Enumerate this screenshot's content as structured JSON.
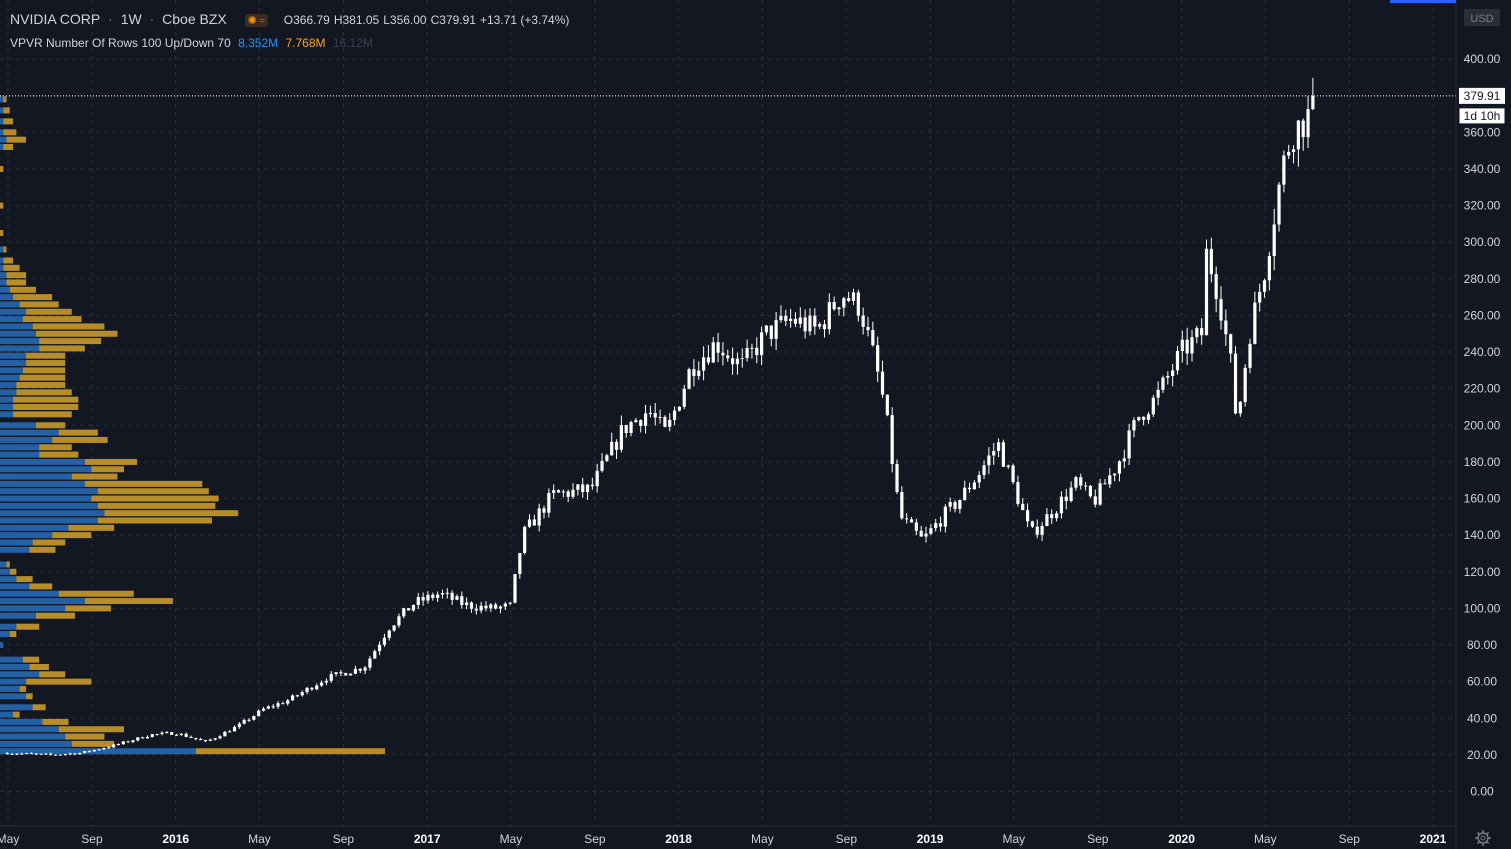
{
  "header": {
    "symbol": "NVIDIA CORP",
    "interval": "1W",
    "exchange": "Cboe BZX",
    "open": "O366.79",
    "high": "H381.05",
    "low": "L356.00",
    "close": "C379.91",
    "change": "+13.71 (+3.74%)"
  },
  "indicator": {
    "label": "VPVR Number Of Rows 100 Up/Down 70",
    "up_volume": "8.352M",
    "down_volume": "7.768M",
    "total_volume": "16.12M"
  },
  "price_axis": {
    "currency": "USD",
    "last_price": "379.91",
    "countdown": "1d 10h"
  },
  "colors": {
    "background": "#131722",
    "candle": "#ffffff",
    "vp_up": "#2668b3",
    "vp_down": "#c99a2a",
    "text": "#d1d4dc",
    "up_label": "#2196f3",
    "down_label": "#f5a623"
  },
  "chart_data": {
    "type": "candlestick",
    "title": "NVIDIA CORP · 1W · Cboe BZX",
    "y_ticks": [
      0,
      20,
      40,
      60,
      80,
      100,
      120,
      140,
      160,
      180,
      200,
      220,
      240,
      260,
      280,
      300,
      320,
      340,
      360,
      380,
      400
    ],
    "y_tick_labels": [
      "0.00",
      "20.00",
      "40.00",
      "60.00",
      "80.00",
      "100.00",
      "120.00",
      "140.00",
      "160.00",
      "180.00",
      "200.00",
      "220.00",
      "240.00",
      "260.00",
      "280.00",
      "300.00",
      "320.00",
      "340.00",
      "360.00",
      "",
      "400.00"
    ],
    "x_ticks": [
      {
        "label": "May",
        "t": 2015.333,
        "bold": false
      },
      {
        "label": "Sep",
        "t": 2015.667,
        "bold": false
      },
      {
        "label": "2016",
        "t": 2016.0,
        "bold": true
      },
      {
        "label": "May",
        "t": 2016.333,
        "bold": false
      },
      {
        "label": "Sep",
        "t": 2016.667,
        "bold": false
      },
      {
        "label": "2017",
        "t": 2017.0,
        "bold": true
      },
      {
        "label": "May",
        "t": 2017.333,
        "bold": false
      },
      {
        "label": "Sep",
        "t": 2017.667,
        "bold": false
      },
      {
        "label": "2018",
        "t": 2018.0,
        "bold": true
      },
      {
        "label": "May",
        "t": 2018.333,
        "bold": false
      },
      {
        "label": "Sep",
        "t": 2018.667,
        "bold": false
      },
      {
        "label": "2019",
        "t": 2019.0,
        "bold": true
      },
      {
        "label": "May",
        "t": 2019.333,
        "bold": false
      },
      {
        "label": "Sep",
        "t": 2019.667,
        "bold": false
      },
      {
        "label": "2020",
        "t": 2020.0,
        "bold": true
      },
      {
        "label": "May",
        "t": 2020.333,
        "bold": false
      },
      {
        "label": "Sep",
        "t": 2020.667,
        "bold": false
      },
      {
        "label": "2021",
        "t": 2021.0,
        "bold": true
      }
    ],
    "last_close": 379.91,
    "price_anchors": [
      [
        2015.33,
        21
      ],
      [
        2015.5,
        20
      ],
      [
        2015.62,
        21
      ],
      [
        2015.75,
        25
      ],
      [
        2015.9,
        31
      ],
      [
        2016.0,
        32
      ],
      [
        2016.12,
        27
      ],
      [
        2016.25,
        36
      ],
      [
        2016.35,
        45
      ],
      [
        2016.45,
        50
      ],
      [
        2016.6,
        62
      ],
      [
        2016.75,
        68
      ],
      [
        2016.85,
        90
      ],
      [
        2016.95,
        103
      ],
      [
        2017.05,
        108
      ],
      [
        2017.15,
        102
      ],
      [
        2017.25,
        100
      ],
      [
        2017.33,
        101
      ],
      [
        2017.38,
        140
      ],
      [
        2017.5,
        162
      ],
      [
        2017.65,
        165
      ],
      [
        2017.78,
        198
      ],
      [
        2017.88,
        208
      ],
      [
        2017.95,
        195
      ],
      [
        2018.05,
        232
      ],
      [
        2018.15,
        245
      ],
      [
        2018.25,
        232
      ],
      [
        2018.35,
        250
      ],
      [
        2018.45,
        258
      ],
      [
        2018.55,
        252
      ],
      [
        2018.65,
        272
      ],
      [
        2018.72,
        265
      ],
      [
        2018.78,
        235
      ],
      [
        2018.82,
        210
      ],
      [
        2018.88,
        150
      ],
      [
        2018.97,
        137
      ],
      [
        2019.05,
        150
      ],
      [
        2019.12,
        160
      ],
      [
        2019.2,
        175
      ],
      [
        2019.27,
        190
      ],
      [
        2019.35,
        160
      ],
      [
        2019.4,
        140
      ],
      [
        2019.5,
        155
      ],
      [
        2019.58,
        168
      ],
      [
        2019.65,
        158
      ],
      [
        2019.75,
        180
      ],
      [
        2019.83,
        205
      ],
      [
        2019.9,
        215
      ],
      [
        2020.0,
        240
      ],
      [
        2020.08,
        250
      ],
      [
        2020.1,
        295
      ],
      [
        2020.15,
        270
      ],
      [
        2020.2,
        230
      ],
      [
        2020.22,
        200
      ],
      [
        2020.27,
        250
      ],
      [
        2020.33,
        285
      ],
      [
        2020.4,
        340
      ],
      [
        2020.44,
        360
      ],
      [
        2020.5,
        368
      ],
      [
        2020.54,
        379.91
      ]
    ],
    "volume_profile": {
      "bins": [
        {
          "price": 22,
          "up": 0.6,
          "down": 0.58
        },
        {
          "price": 26,
          "up": 0.22,
          "down": 0.13
        },
        {
          "price": 30,
          "up": 0.2,
          "down": 0.12
        },
        {
          "price": 34,
          "up": 0.18,
          "down": 0.2
        },
        {
          "price": 38,
          "up": 0.13,
          "down": 0.08
        },
        {
          "price": 42,
          "up": 0.04,
          "down": 0.02
        },
        {
          "price": 46,
          "up": 0.1,
          "down": 0.04
        },
        {
          "price": 52,
          "up": 0.08,
          "down": 0.02
        },
        {
          "price": 56,
          "up": 0.06,
          "down": 0.02
        },
        {
          "price": 60,
          "up": 0.08,
          "down": 0.2
        },
        {
          "price": 64,
          "up": 0.12,
          "down": 0.08
        },
        {
          "price": 68,
          "up": 0.09,
          "down": 0.06
        },
        {
          "price": 72,
          "up": 0.07,
          "down": 0.05
        },
        {
          "price": 80,
          "up": 0.01,
          "down": 0.0
        },
        {
          "price": 86,
          "up": 0.03,
          "down": 0.02
        },
        {
          "price": 90,
          "up": 0.05,
          "down": 0.07
        },
        {
          "price": 96,
          "up": 0.11,
          "down": 0.12
        },
        {
          "price": 100,
          "up": 0.2,
          "down": 0.14
        },
        {
          "price": 104,
          "up": 0.26,
          "down": 0.27
        },
        {
          "price": 108,
          "up": 0.18,
          "down": 0.23
        },
        {
          "price": 112,
          "up": 0.09,
          "down": 0.07
        },
        {
          "price": 116,
          "up": 0.05,
          "down": 0.05
        },
        {
          "price": 120,
          "up": 0.03,
          "down": 0.02
        },
        {
          "price": 124,
          "up": 0.02,
          "down": 0.01
        },
        {
          "price": 132,
          "up": 0.09,
          "down": 0.08
        },
        {
          "price": 136,
          "up": 0.1,
          "down": 0.1
        },
        {
          "price": 140,
          "up": 0.16,
          "down": 0.12
        },
        {
          "price": 144,
          "up": 0.21,
          "down": 0.14
        },
        {
          "price": 148,
          "up": 0.3,
          "down": 0.35
        },
        {
          "price": 152,
          "up": 0.32,
          "down": 0.41
        },
        {
          "price": 156,
          "up": 0.3,
          "down": 0.36
        },
        {
          "price": 160,
          "up": 0.28,
          "down": 0.39
        },
        {
          "price": 164,
          "up": 0.3,
          "down": 0.34
        },
        {
          "price": 168,
          "up": 0.26,
          "down": 0.36
        },
        {
          "price": 172,
          "up": 0.22,
          "down": 0.14
        },
        {
          "price": 176,
          "up": 0.28,
          "down": 0.1
        },
        {
          "price": 180,
          "up": 0.26,
          "down": 0.16
        },
        {
          "price": 184,
          "up": 0.12,
          "down": 0.12
        },
        {
          "price": 188,
          "up": 0.12,
          "down": 0.1
        },
        {
          "price": 192,
          "up": 0.16,
          "down": 0.17
        },
        {
          "price": 196,
          "up": 0.18,
          "down": 0.12
        },
        {
          "price": 200,
          "up": 0.11,
          "down": 0.09
        },
        {
          "price": 206,
          "up": 0.04,
          "down": 0.18
        },
        {
          "price": 210,
          "up": 0.04,
          "down": 0.2
        },
        {
          "price": 214,
          "up": 0.04,
          "down": 0.2
        },
        {
          "price": 218,
          "up": 0.05,
          "down": 0.17
        },
        {
          "price": 222,
          "up": 0.05,
          "down": 0.15
        },
        {
          "price": 226,
          "up": 0.06,
          "down": 0.14
        },
        {
          "price": 230,
          "up": 0.07,
          "down": 0.13
        },
        {
          "price": 234,
          "up": 0.08,
          "down": 0.12
        },
        {
          "price": 238,
          "up": 0.08,
          "down": 0.12
        },
        {
          "price": 242,
          "up": 0.12,
          "down": 0.14
        },
        {
          "price": 246,
          "up": 0.12,
          "down": 0.19
        },
        {
          "price": 250,
          "up": 0.11,
          "down": 0.25
        },
        {
          "price": 254,
          "up": 0.1,
          "down": 0.22
        },
        {
          "price": 258,
          "up": 0.07,
          "down": 0.18
        },
        {
          "price": 262,
          "up": 0.08,
          "down": 0.14
        },
        {
          "price": 266,
          "up": 0.06,
          "down": 0.12
        },
        {
          "price": 270,
          "up": 0.04,
          "down": 0.12
        },
        {
          "price": 274,
          "up": 0.03,
          "down": 0.08
        },
        {
          "price": 278,
          "up": 0.02,
          "down": 0.06
        },
        {
          "price": 282,
          "up": 0.02,
          "down": 0.06
        },
        {
          "price": 286,
          "up": 0.01,
          "down": 0.05
        },
        {
          "price": 290,
          "up": 0.01,
          "down": 0.03
        },
        {
          "price": 296,
          "up": 0.01,
          "down": 0.01
        },
        {
          "price": 305,
          "up": 0.0,
          "down": 0.01
        },
        {
          "price": 320,
          "up": 0.0,
          "down": 0.01
        },
        {
          "price": 340,
          "up": 0.0,
          "down": 0.01
        },
        {
          "price": 352,
          "up": 0.01,
          "down": 0.03
        },
        {
          "price": 356,
          "up": 0.02,
          "down": 0.06
        },
        {
          "price": 360,
          "up": 0.01,
          "down": 0.04
        },
        {
          "price": 366,
          "up": 0.01,
          "down": 0.03
        },
        {
          "price": 372,
          "up": 0.01,
          "down": 0.02
        },
        {
          "price": 378,
          "up": 0.01,
          "down": 0.01
        }
      ]
    }
  }
}
